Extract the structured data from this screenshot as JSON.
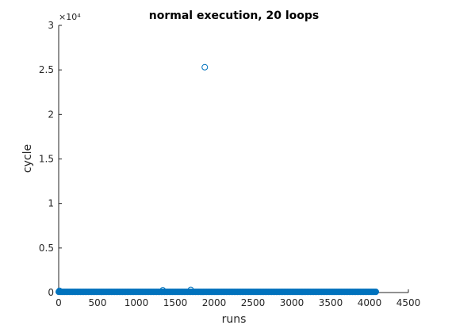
{
  "chart_data": {
    "type": "scatter",
    "title": "normal execution, 20 loops",
    "xlabel": "runs",
    "ylabel": "cycle",
    "xlim": [
      0,
      4500
    ],
    "ylim": [
      0,
      30000
    ],
    "x_ticks": [
      0,
      500,
      1000,
      1500,
      2000,
      2500,
      3000,
      3500,
      4000,
      4500
    ],
    "x_tick_labels": [
      "0",
      "500",
      "1000",
      "1500",
      "2000",
      "2500",
      "3000",
      "3500",
      "4000",
      "4500"
    ],
    "y_ticks": [
      0,
      5000,
      10000,
      15000,
      20000,
      25000,
      30000
    ],
    "y_tick_labels": [
      "0",
      "0.5",
      "1",
      "1.5",
      "2",
      "2.5",
      "3"
    ],
    "y_exponent_label": "×10⁴",
    "grid": false,
    "marker": "circle-open",
    "series_color": "#0072bd",
    "baseline_series": {
      "x_start": 1,
      "x_end": 4096,
      "x_step": 20,
      "y": 80
    },
    "outliers": [
      {
        "x": 1880,
        "y": 25300
      },
      {
        "x": 1340,
        "y": 260
      },
      {
        "x": 1700,
        "y": 300
      },
      {
        "x": 10,
        "y": 200
      }
    ]
  }
}
